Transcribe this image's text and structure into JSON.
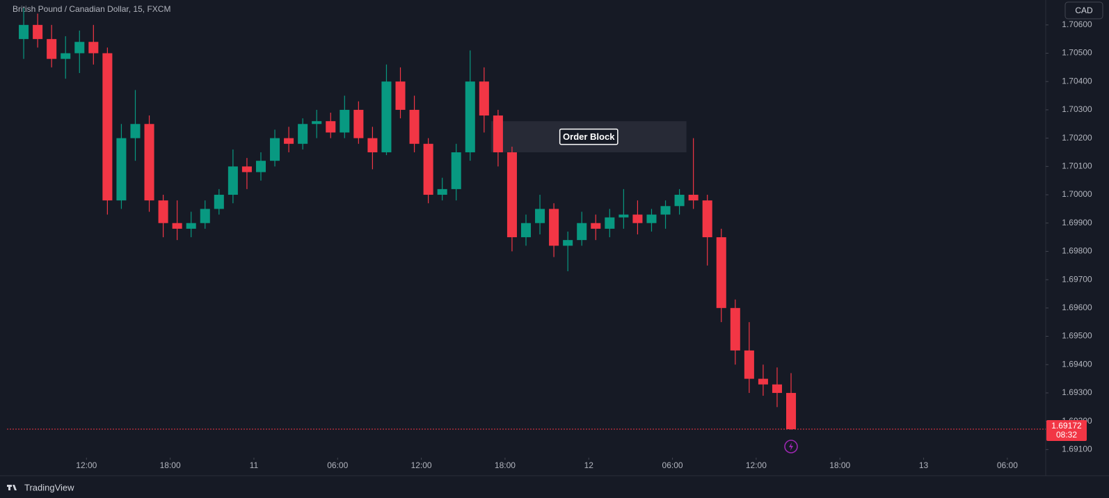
{
  "chart_data": {
    "type": "candlestick",
    "title": "British Pound / Canadian Dollar, 15, FXCM",
    "currency": "CAD",
    "x": [
      7,
      8,
      9,
      10,
      11,
      12,
      13,
      14,
      15,
      16,
      17,
      18,
      19,
      20,
      21,
      22,
      23,
      24,
      25,
      26,
      27,
      28,
      29,
      30,
      31,
      32,
      33,
      34,
      35,
      36,
      37,
      38,
      39,
      40,
      41,
      42,
      43,
      44,
      45,
      46,
      47,
      48,
      49,
      50,
      51,
      52,
      53,
      54,
      55,
      56,
      57,
      58,
      59,
      60,
      61,
      62
    ],
    "open": [
      1.7055,
      1.706,
      1.7055,
      1.7048,
      1.705,
      1.7054,
      1.705,
      1.6998,
      1.702,
      1.7025,
      1.6998,
      1.699,
      1.6988,
      1.699,
      1.6995,
      1.7,
      1.701,
      1.7008,
      1.7012,
      1.702,
      1.7018,
      1.7025,
      1.7026,
      1.7022,
      1.703,
      1.702,
      1.7015,
      1.704,
      1.703,
      1.7018,
      1.7,
      1.7002,
      1.7015,
      1.704,
      1.7028,
      1.7015,
      1.6985,
      1.699,
      1.6995,
      1.6982,
      1.6984,
      1.699,
      1.6988,
      1.6992,
      1.6993,
      1.699,
      1.6993,
      1.6996,
      1.7,
      1.6998,
      1.6985,
      1.696,
      1.6945,
      1.6935,
      1.6933,
      1.693
    ],
    "high": [
      1.7066,
      1.7064,
      1.706,
      1.7056,
      1.7058,
      1.706,
      1.7052,
      1.7025,
      1.7037,
      1.7028,
      1.7,
      1.6998,
      1.6994,
      1.6998,
      1.7002,
      1.7016,
      1.7013,
      1.7015,
      1.7023,
      1.7024,
      1.7027,
      1.703,
      1.7029,
      1.7035,
      1.7033,
      1.7024,
      1.7046,
      1.7045,
      1.7035,
      1.702,
      1.7006,
      1.7018,
      1.7051,
      1.7045,
      1.703,
      1.7017,
      1.6993,
      1.7,
      1.6997,
      1.6987,
      1.6994,
      1.6993,
      1.6995,
      1.7002,
      1.6998,
      1.6995,
      1.6998,
      1.7002,
      1.702,
      1.7,
      1.6988,
      1.6963,
      1.6955,
      1.694,
      1.6939,
      1.6937
    ],
    "low": [
      1.7048,
      1.7052,
      1.7045,
      1.7041,
      1.7043,
      1.7046,
      1.6993,
      1.6995,
      1.7012,
      1.6994,
      1.6985,
      1.6984,
      1.6985,
      1.6988,
      1.6993,
      1.6997,
      1.7002,
      1.7005,
      1.701,
      1.7015,
      1.7016,
      1.702,
      1.702,
      1.702,
      1.7018,
      1.7009,
      1.7014,
      1.7027,
      1.7015,
      1.6997,
      1.6998,
      1.6998,
      1.7012,
      1.7022,
      1.701,
      1.698,
      1.6982,
      1.6986,
      1.6978,
      1.6973,
      1.6982,
      1.6984,
      1.6985,
      1.6988,
      1.6986,
      1.6987,
      1.6988,
      1.6993,
      1.6995,
      1.6975,
      1.6955,
      1.694,
      1.693,
      1.6929,
      1.6925,
      1.6917
    ],
    "close": [
      1.706,
      1.7055,
      1.7048,
      1.705,
      1.7054,
      1.705,
      1.6998,
      1.702,
      1.7025,
      1.6998,
      1.699,
      1.6988,
      1.699,
      1.6995,
      1.7,
      1.701,
      1.7008,
      1.7012,
      1.702,
      1.7018,
      1.7025,
      1.7026,
      1.7022,
      1.703,
      1.702,
      1.7015,
      1.704,
      1.703,
      1.7018,
      1.7,
      1.7002,
      1.7015,
      1.704,
      1.7028,
      1.7015,
      1.6985,
      1.699,
      1.6995,
      1.6982,
      1.6984,
      1.699,
      1.6988,
      1.6992,
      1.6993,
      1.699,
      1.6993,
      1.6996,
      1.7,
      1.6998,
      1.6985,
      1.696,
      1.6945,
      1.6935,
      1.6933,
      1.693,
      1.69172
    ],
    "up_color": "#089981",
    "down_color": "#f23645",
    "xlim": [
      6.3,
      80.6
    ],
    "xticks": [
      {
        "value": 12,
        "label": "12:00"
      },
      {
        "value": 18,
        "label": "18:00"
      },
      {
        "value": 24,
        "label": "11"
      },
      {
        "value": 30,
        "label": "06:00"
      },
      {
        "value": 36,
        "label": "12:00"
      },
      {
        "value": 42,
        "label": "18:00"
      },
      {
        "value": 48,
        "label": "12"
      },
      {
        "value": 54,
        "label": "06:00"
      },
      {
        "value": 60,
        "label": "12:00"
      },
      {
        "value": 66,
        "label": "18:00"
      },
      {
        "value": 72,
        "label": "13"
      },
      {
        "value": 78,
        "label": "06:00"
      }
    ],
    "ylim": [
      1.69091,
      1.70688
    ],
    "yticks": [
      {
        "value": 1.706,
        "label": "1.70600"
      },
      {
        "value": 1.705,
        "label": "1.70500"
      },
      {
        "value": 1.704,
        "label": "1.70400"
      },
      {
        "value": 1.703,
        "label": "1.70300"
      },
      {
        "value": 1.702,
        "label": "1.70200"
      },
      {
        "value": 1.701,
        "label": "1.70100"
      },
      {
        "value": 1.7,
        "label": "1.70000"
      },
      {
        "value": 1.699,
        "label": "1.69900"
      },
      {
        "value": 1.698,
        "label": "1.69800"
      },
      {
        "value": 1.697,
        "label": "1.69700"
      },
      {
        "value": 1.696,
        "label": "1.69600"
      },
      {
        "value": 1.695,
        "label": "1.69500"
      },
      {
        "value": 1.694,
        "label": "1.69400"
      },
      {
        "value": 1.693,
        "label": "1.69300"
      },
      {
        "value": 1.692,
        "label": "1.69200"
      },
      {
        "value": 1.691,
        "label": "1.69100"
      }
    ],
    "grid": false,
    "last_price": {
      "value": 1.69172,
      "countdown": "08:32",
      "color": "#f23645"
    },
    "box": {
      "label": "Order Block",
      "x": [
        41,
        55
      ],
      "y": [
        1.7015,
        1.7026
      ]
    }
  },
  "footer": {
    "brand": "TradingView"
  }
}
